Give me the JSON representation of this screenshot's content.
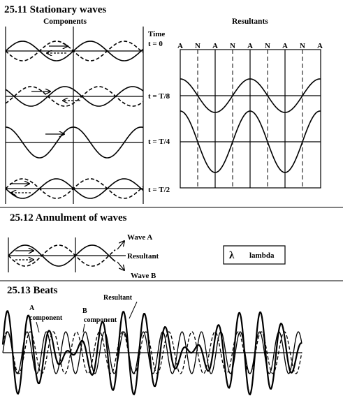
{
  "sections": {
    "stationary": {
      "title": "25.11 Stationary waves",
      "components_label": "Components",
      "resultants_label": "Resultants",
      "time_label": "Time",
      "times": [
        "t = 0",
        "t = T/8",
        "t = T/4",
        "t = T/2"
      ],
      "node_labels": [
        "A",
        "N",
        "A",
        "N",
        "A",
        "N",
        "A",
        "N",
        "A"
      ]
    },
    "annulment": {
      "title": "25.12 Annulment of waves",
      "wave_a": "Wave A",
      "resultant": "Resultant",
      "wave_b": "Wave B"
    },
    "beats": {
      "title": "25.13 Beats",
      "resultant": "Resultant",
      "a_label": "A",
      "a_sub": "component",
      "b_label": "B",
      "b_sub": "component"
    }
  },
  "legend": {
    "symbol": "λ",
    "text": "lambda"
  }
}
